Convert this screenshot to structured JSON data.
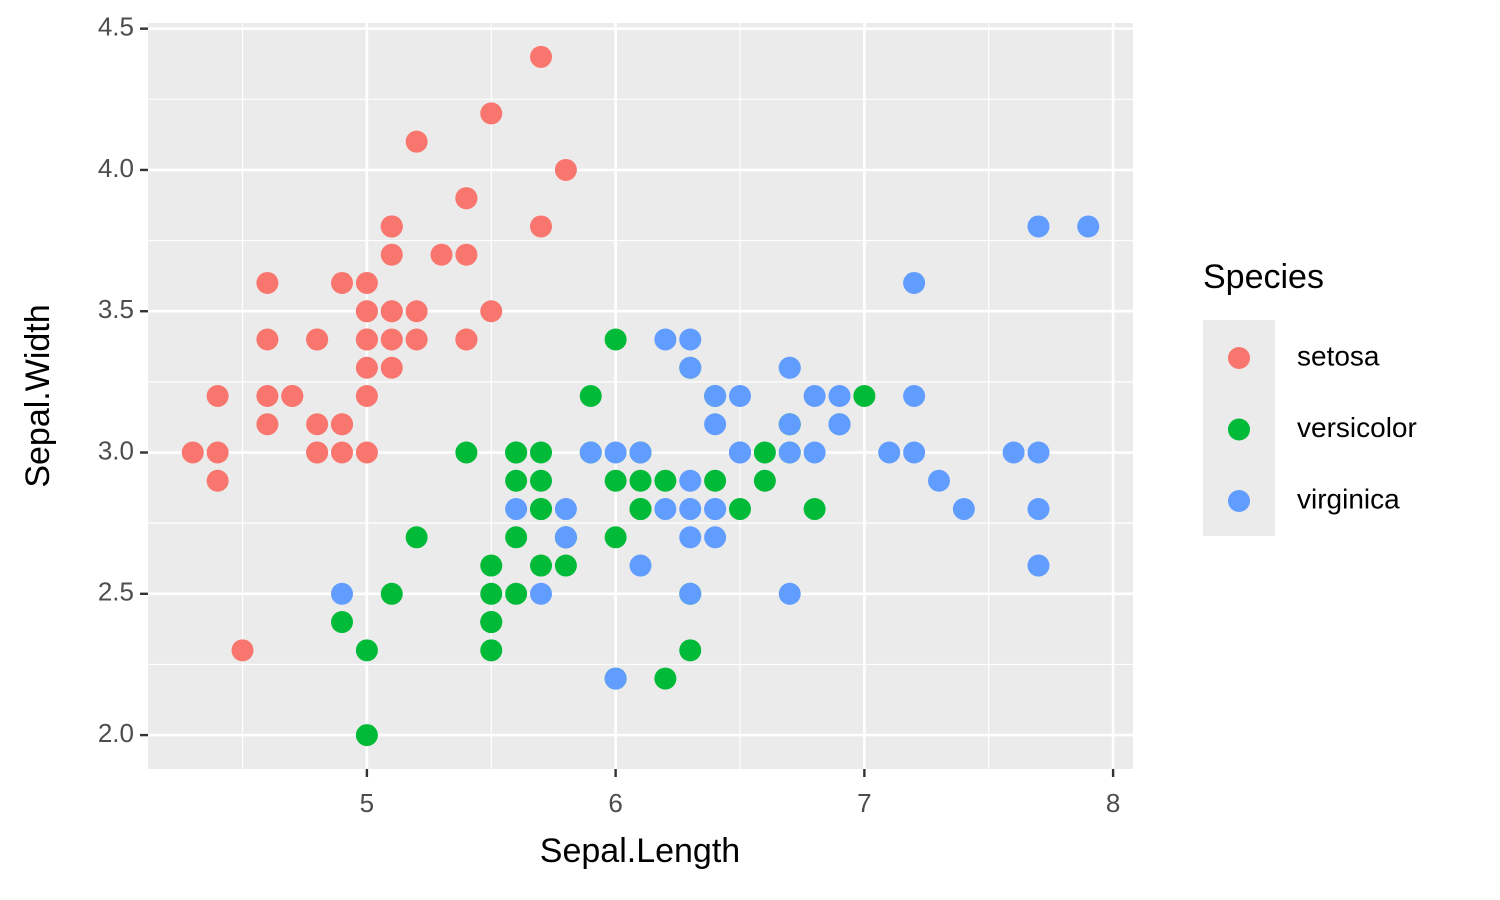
{
  "chart_data": {
    "type": "scatter",
    "x_label": "Sepal.Length",
    "y_label": "Sepal.Width",
    "legend_title": "Species",
    "legend_position": "right",
    "grid": true,
    "xlim": [
      4.12,
      8.08
    ],
    "ylim": [
      1.88,
      4.52
    ],
    "xticks": [
      5,
      6,
      7,
      8
    ],
    "yticks": [
      {
        "value": 2,
        "label": "2.0"
      },
      {
        "value": 2.5,
        "label": "2.5"
      },
      {
        "value": 3,
        "label": "3.0"
      },
      {
        "value": 3.5,
        "label": "3.5"
      },
      {
        "value": 4,
        "label": "4.0"
      },
      {
        "value": 4.5,
        "label": "4.5"
      }
    ],
    "x_minor_breaks": [
      4.5,
      5.5,
      6.5,
      7.5
    ],
    "y_minor_breaks": [
      2.25,
      2.75,
      3.25,
      3.75,
      4.25
    ],
    "series": [
      {
        "name": "setosa",
        "color": "#F8766D",
        "x": [
          5.1,
          4.9,
          4.7,
          4.6,
          5.0,
          5.4,
          4.6,
          5.0,
          4.4,
          4.9,
          5.4,
          4.8,
          4.8,
          4.3,
          5.8,
          5.7,
          5.4,
          5.1,
          5.7,
          5.1,
          5.4,
          5.1,
          4.6,
          5.1,
          4.8,
          5.0,
          5.0,
          5.2,
          5.2,
          4.7,
          4.8,
          5.4,
          5.2,
          5.5,
          4.9,
          5.0,
          5.5,
          4.9,
          4.4,
          5.1,
          5.0,
          4.5,
          4.4,
          5.0,
          5.1,
          4.8,
          5.1,
          4.6,
          5.3,
          5.0
        ],
        "values": [
          3.5,
          3.0,
          3.2,
          3.1,
          3.6,
          3.9,
          3.4,
          3.4,
          2.9,
          3.1,
          3.7,
          3.4,
          3.0,
          3.0,
          4.0,
          4.4,
          3.9,
          3.5,
          3.8,
          3.8,
          3.4,
          3.7,
          3.6,
          3.3,
          3.4,
          3.0,
          3.4,
          3.5,
          3.4,
          3.2,
          3.1,
          3.4,
          4.1,
          4.2,
          3.1,
          3.2,
          3.5,
          3.6,
          3.0,
          3.4,
          3.5,
          2.3,
          3.2,
          3.5,
          3.8,
          3.0,
          3.8,
          3.2,
          3.7,
          3.3
        ]
      },
      {
        "name": "versicolor",
        "color": "#00BA38",
        "x": [
          7.0,
          6.4,
          6.9,
          5.5,
          6.5,
          5.7,
          6.3,
          4.9,
          6.6,
          5.2,
          5.0,
          5.9,
          6.0,
          6.1,
          5.6,
          6.7,
          5.6,
          5.8,
          6.2,
          5.6,
          5.9,
          6.1,
          6.3,
          6.1,
          6.4,
          6.6,
          6.8,
          6.7,
          6.0,
          5.7,
          5.5,
          5.5,
          5.8,
          6.0,
          5.4,
          6.0,
          6.7,
          6.3,
          5.6,
          5.5,
          5.5,
          6.1,
          5.8,
          5.0,
          5.6,
          5.7,
          5.7,
          6.2,
          5.1,
          5.7
        ],
        "values": [
          3.2,
          3.2,
          3.1,
          2.3,
          2.8,
          2.8,
          3.3,
          2.4,
          2.9,
          2.7,
          2.0,
          3.0,
          2.2,
          2.9,
          2.9,
          3.1,
          3.0,
          2.7,
          2.2,
          2.5,
          3.2,
          2.8,
          2.5,
          2.8,
          2.9,
          3.0,
          2.8,
          3.0,
          2.9,
          2.6,
          2.4,
          2.4,
          2.7,
          2.7,
          3.0,
          3.4,
          3.1,
          2.3,
          3.0,
          2.5,
          2.6,
          3.0,
          2.6,
          2.3,
          2.7,
          3.0,
          2.9,
          2.9,
          2.5,
          2.8
        ]
      },
      {
        "name": "virginica",
        "color": "#619CFF",
        "x": [
          6.3,
          5.8,
          7.1,
          6.3,
          6.5,
          7.6,
          4.9,
          7.3,
          6.7,
          7.2,
          6.5,
          6.4,
          6.8,
          5.7,
          5.8,
          6.4,
          6.5,
          7.7,
          7.7,
          6.0,
          6.9,
          5.6,
          7.7,
          6.3,
          6.7,
          7.2,
          6.2,
          6.1,
          6.4,
          7.2,
          7.4,
          7.9,
          6.4,
          6.3,
          6.1,
          7.7,
          6.3,
          6.4,
          6.0,
          6.9,
          6.7,
          6.9,
          5.8,
          6.8,
          6.7,
          6.7,
          6.3,
          6.5,
          6.2,
          5.9
        ],
        "values": [
          3.3,
          2.7,
          3.0,
          2.9,
          3.0,
          3.0,
          2.5,
          2.9,
          2.5,
          3.6,
          3.2,
          2.7,
          3.0,
          2.5,
          2.8,
          3.2,
          3.0,
          3.8,
          2.6,
          2.2,
          3.2,
          2.8,
          2.8,
          2.7,
          3.3,
          3.2,
          2.8,
          3.0,
          2.8,
          3.0,
          2.8,
          3.8,
          2.8,
          2.8,
          2.6,
          3.0,
          3.4,
          3.1,
          3.0,
          3.1,
          3.1,
          3.1,
          2.7,
          3.2,
          3.3,
          3.0,
          2.5,
          3.0,
          3.4,
          3.0
        ]
      }
    ]
  }
}
